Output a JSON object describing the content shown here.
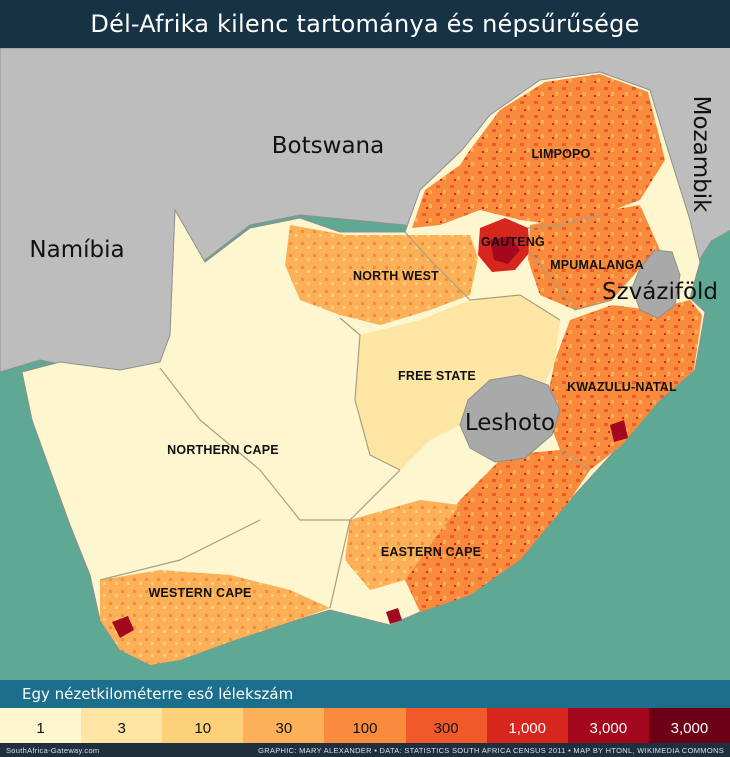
{
  "title": "Dél-Afrika kilenc tartománya és népsűrűsége",
  "countries": {
    "botswana": "Botswana",
    "namibia": "Namíbia",
    "mozambique": "Mozambik",
    "swaziland": "Szváziföld",
    "lesotho": "Leshoto"
  },
  "provinces": {
    "limpopo": "LIMPOPO",
    "gauteng": "GAUTENG",
    "mpumalanga": "MPUMALANGA",
    "north_west": "NORTH WEST",
    "free_state": "FREE STATE",
    "kwazulu_natal": "KWAZULU-NATAL",
    "northern_cape": "NORTHERN CAPE",
    "eastern_cape": "EASTERN CAPE",
    "western_cape": "WESTERN CAPE"
  },
  "legend": {
    "title": "Egy nézetkilométerre eső lélekszám",
    "items": [
      {
        "label": "1",
        "color": "#fdf6cf"
      },
      {
        "label": "3",
        "color": "#fde6a3"
      },
      {
        "label": "10",
        "color": "#fdd07a"
      },
      {
        "label": "30",
        "color": "#fcb057"
      },
      {
        "label": "100",
        "color": "#f98c3c"
      },
      {
        "label": "300",
        "color": "#f05a2a"
      },
      {
        "label": "1,000",
        "color": "#d7261e"
      },
      {
        "label": "3,000",
        "color": "#a3081f"
      },
      {
        "label": "3,000",
        "color": "#6e0016"
      }
    ]
  },
  "footer": {
    "left": "SouthAfrica-Gateway.com",
    "right": "GRAPHIC: MARY ALEXANDER • DATA: STATISTICS SOUTH AFRICA CENSUS 2011 • MAP BY HTONL, WIKIMEDIA COMMONS"
  },
  "colors": {
    "ocean": "#5fa894",
    "land_neighbors": "#bdbdbd",
    "lesotho": "#a9a9a9",
    "title_bg": "#173245",
    "legend_bg": "#1b6f8c"
  }
}
